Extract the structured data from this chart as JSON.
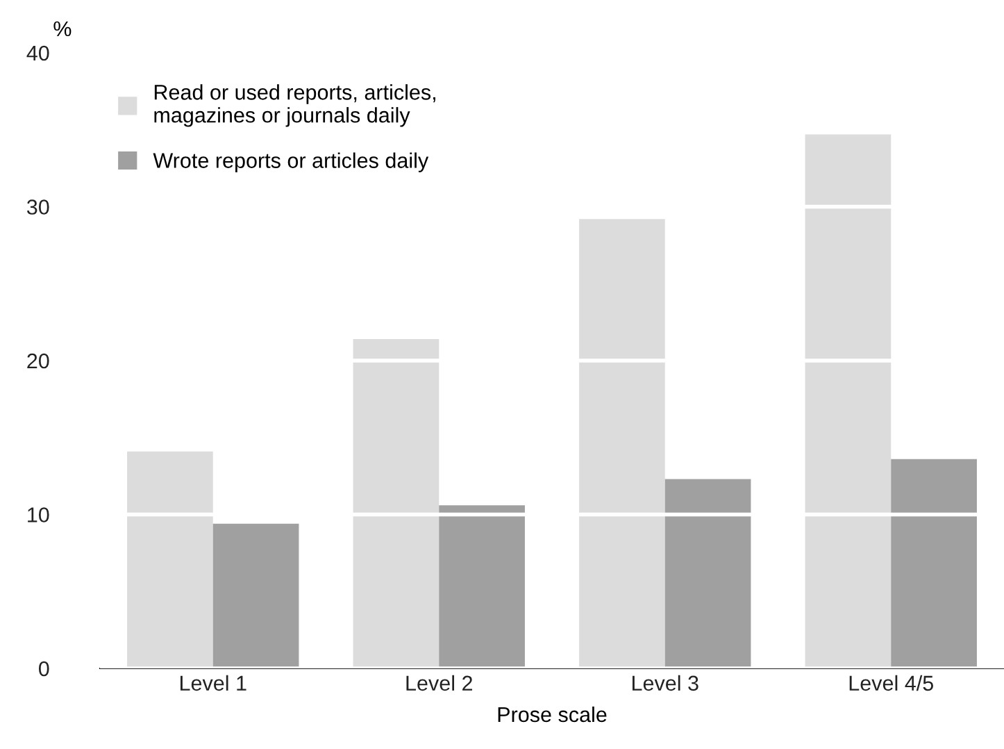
{
  "chart_data": {
    "type": "bar",
    "xlabel": "Prose scale",
    "ylabel": "%",
    "categories": [
      "Level 1",
      "Level 2",
      "Level 3",
      "Level 4/5"
    ],
    "series": [
      {
        "name": "Read or used reports, articles,\nmagazines or journals daily",
        "color": "#dcdcdc",
        "values": [
          14.1,
          21.4,
          29.2,
          34.7
        ]
      },
      {
        "name": "Wrote reports or articles daily",
        "color": "#a0a0a0",
        "values": [
          9.4,
          10.6,
          12.3,
          13.6
        ]
      }
    ],
    "ylim": [
      0,
      40
    ],
    "yticks": [
      0,
      10,
      20,
      30,
      40
    ],
    "grid": "y",
    "legend": "top left"
  }
}
